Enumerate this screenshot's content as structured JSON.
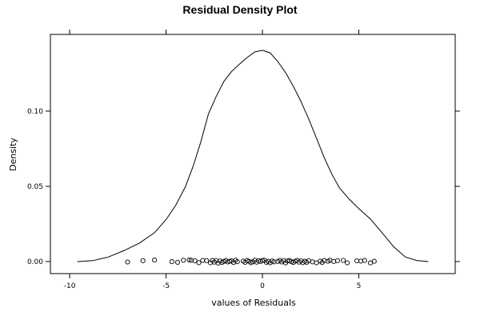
{
  "chart_data": {
    "type": "line",
    "title": "Residual Density Plot",
    "xlabel": "values of Residuals",
    "ylabel": "Density",
    "xlim": [
      -11,
      10
    ],
    "ylim": [
      -0.008,
      0.151
    ],
    "x_ticks": [
      {
        "value": -10,
        "label": "-10"
      },
      {
        "value": -5,
        "label": "-5"
      },
      {
        "value": 0,
        "label": "0"
      },
      {
        "value": 5,
        "label": "5"
      }
    ],
    "y_ticks": [
      {
        "value": 0.0,
        "label": "0.00"
      },
      {
        "value": 0.05,
        "label": "0.05"
      },
      {
        "value": 0.1,
        "label": "0.10"
      }
    ],
    "grid": false,
    "series": [
      {
        "kind": "density",
        "x": [
          -9.6,
          -8.8,
          -8.0,
          -7.2,
          -6.4,
          -5.6,
          -5.0,
          -4.5,
          -4.0,
          -3.6,
          -3.2,
          -2.8,
          -2.4,
          -2.0,
          -1.6,
          -1.2,
          -0.8,
          -0.4,
          0.0,
          0.4,
          0.8,
          1.2,
          1.6,
          2.0,
          2.4,
          2.8,
          3.2,
          3.6,
          4.0,
          4.5,
          5.0,
          5.6,
          6.2,
          6.8,
          7.4,
          8.0,
          8.6
        ],
        "y": [
          0.0,
          0.0006,
          0.003,
          0.0072,
          0.0121,
          0.0192,
          0.0279,
          0.0373,
          0.0497,
          0.0632,
          0.0793,
          0.0982,
          0.1097,
          0.1198,
          0.1264,
          0.1311,
          0.1356,
          0.1393,
          0.1404,
          0.1387,
          0.1329,
          0.1256,
          0.1166,
          0.1064,
          0.0948,
          0.0822,
          0.0692,
          0.0581,
          0.0489,
          0.0415,
          0.0352,
          0.0283,
          0.0193,
          0.0099,
          0.0031,
          0.0007,
          0.0
        ]
      },
      {
        "kind": "rug",
        "x": [
          -7.0,
          -6.2,
          -5.6,
          -4.7,
          -4.4,
          -4.1,
          -3.8,
          -3.7,
          -3.5,
          -3.3,
          -3.1,
          -2.9,
          -2.7,
          -2.6,
          -2.5,
          -2.4,
          -2.3,
          -2.2,
          -2.1,
          -2.0,
          -1.9,
          -1.8,
          -1.7,
          -1.6,
          -1.5,
          -1.4,
          -1.3,
          -1.0,
          -0.9,
          -0.8,
          -0.7,
          -0.6,
          -0.5,
          -0.4,
          -0.3,
          -0.2,
          -0.1,
          0.0,
          0.1,
          0.2,
          0.3,
          0.4,
          0.5,
          0.6,
          0.8,
          0.9,
          1.0,
          1.1,
          1.2,
          1.3,
          1.4,
          1.5,
          1.6,
          1.7,
          1.8,
          1.9,
          2.0,
          2.1,
          2.2,
          2.3,
          2.4,
          2.6,
          2.8,
          3.0,
          3.1,
          3.2,
          3.4,
          3.5,
          3.7,
          3.9,
          4.2,
          4.4,
          4.9,
          5.1,
          5.3,
          5.6,
          5.8
        ],
        "y": [
          -0.0003,
          0.0006,
          0.001,
          -0.0001,
          -0.0005,
          0.0009,
          0.0011,
          0.0009,
          0.0005,
          -0.0007,
          0.0008,
          0.0006,
          -0.0008,
          0.0007,
          -0.0004,
          0.0006,
          -0.001,
          0.0004,
          -0.0006,
          0.0001,
          0.0007,
          -0.0003,
          0.0002,
          0.0005,
          -0.0006,
          0.0009,
          -0.0001,
          0.0003,
          -0.0005,
          0.0007,
          0.0002,
          -0.0007,
          -0.0002,
          0.0009,
          -0.0004,
          0.0006,
          0.0001,
          0.0007,
          0.0009,
          -0.0005,
          0.0002,
          -0.0008,
          0.0004,
          -0.0002,
          0.0001,
          0.0008,
          -0.0003,
          0.0006,
          -0.0009,
          0.0004,
          0.0007,
          -0.0001,
          -0.0006,
          0.0003,
          0.0008,
          -0.0004,
          0.0005,
          -0.0007,
          0.0002,
          -0.0005,
          0.0006,
          -0.0002,
          -0.0008,
          0.0003,
          -0.0006,
          0.0007,
          0.0002,
          0.0009,
          0.0001,
          0.0006,
          0.0008,
          -0.0008,
          0.0005,
          0.0003,
          0.0007,
          -0.0009,
          0.0002
        ]
      }
    ]
  }
}
